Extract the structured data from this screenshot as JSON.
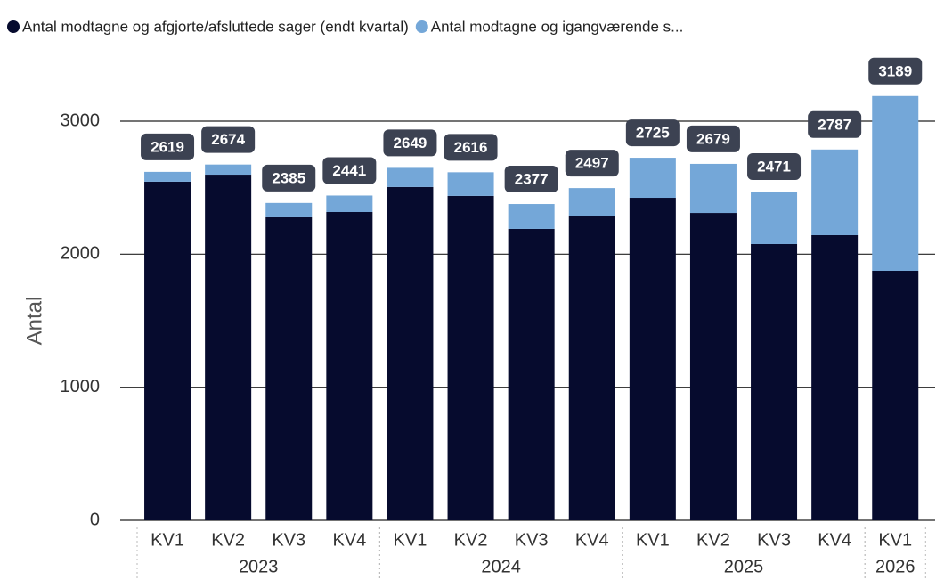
{
  "chart_data": {
    "type": "stacked_bar",
    "y_label": "Antal",
    "groups": [
      {
        "label": "2023",
        "categories": [
          "KV1",
          "KV2",
          "KV3",
          "KV4"
        ]
      },
      {
        "label": "2024",
        "categories": [
          "KV1",
          "KV2",
          "KV3",
          "KV4"
        ]
      },
      {
        "label": "2025",
        "categories": [
          "KV1",
          "KV2",
          "KV3",
          "KV4"
        ]
      },
      {
        "label": "2026",
        "categories": [
          "KV1"
        ]
      }
    ],
    "series": [
      {
        "name": "Antal modtagne og afgjorte/afsluttede sager (endt kvartal)",
        "color": "#060b2e",
        "values": [
          2545,
          2598,
          2277,
          2317,
          2505,
          2438,
          2190,
          2290,
          2424,
          2310,
          2076,
          2143,
          1875
        ]
      },
      {
        "name": "Antal modtagne og igangværende s...",
        "color": "#74a7d8",
        "values": [
          74,
          76,
          108,
          124,
          144,
          178,
          187,
          207,
          301,
          369,
          395,
          644,
          1314
        ]
      }
    ],
    "totals": [
      2619,
      2674,
      2385,
      2441,
      2649,
      2616,
      2377,
      2497,
      2725,
      2679,
      2471,
      2787,
      3189
    ],
    "ylim": [
      0,
      3000
    ],
    "yticks": [
      0,
      1000,
      2000,
      3000
    ],
    "grid": true
  }
}
